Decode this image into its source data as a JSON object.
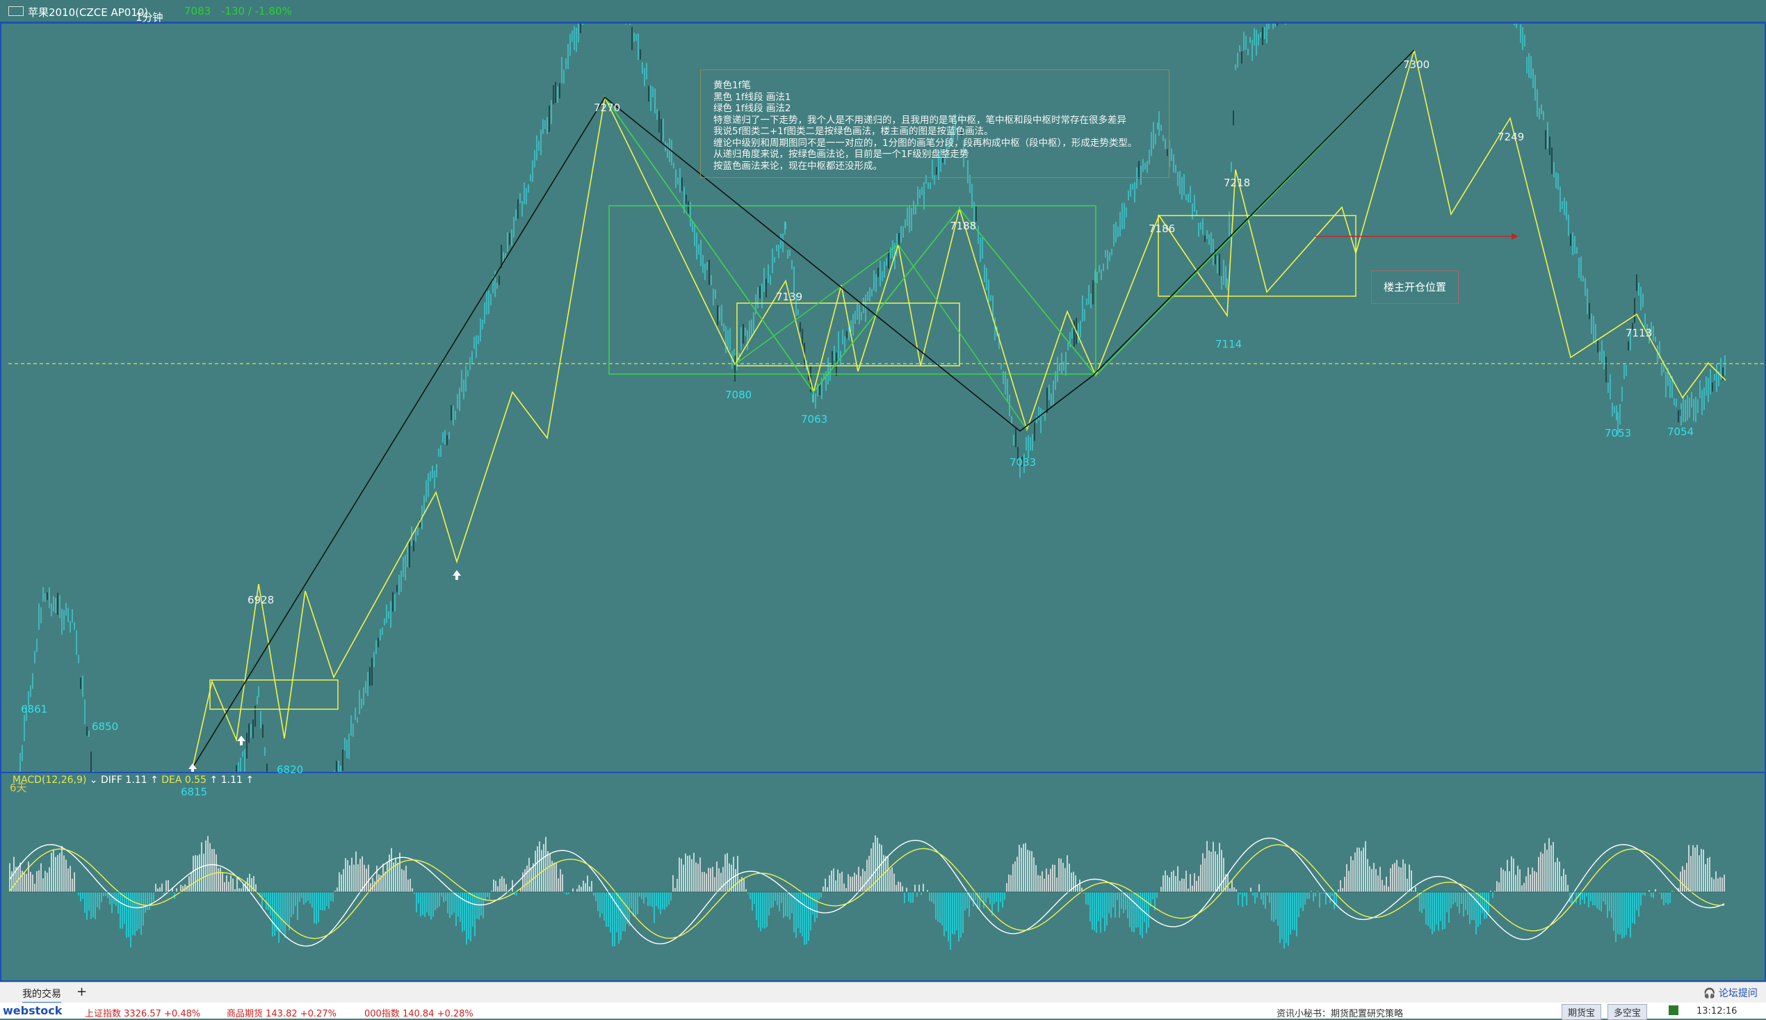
{
  "title_bar": {
    "symbol": "苹果2010(CZCE AP010)",
    "period": "1分钟",
    "price": "7083",
    "change": "-130 / -1.80%"
  },
  "chart_data": {
    "type": "line",
    "title": "",
    "price_axis_ref": 7080,
    "annotations": {
      "peaks": [
        "7270",
        "7300",
        "7249",
        "7218",
        "7188",
        "7186",
        "7139",
        "7113",
        "6928"
      ],
      "troughs": [
        "6861",
        "6850",
        "6820",
        "6815",
        "7080",
        "7063",
        "7033",
        "7114",
        "7053",
        "7054"
      ]
    },
    "pivots": [
      {
        "label": "6861",
        "value": 6861
      },
      {
        "label": "6850",
        "value": 6850
      },
      {
        "label": "6815",
        "value": 6815
      },
      {
        "label": "6928",
        "value": 6928
      },
      {
        "label": "6820",
        "value": 6820
      },
      {
        "label": "7270",
        "value": 7270
      },
      {
        "label": "7080",
        "value": 7080
      },
      {
        "label": "7139",
        "value": 7139
      },
      {
        "label": "7063",
        "value": 7063
      },
      {
        "label": "7188",
        "value": 7188
      },
      {
        "label": "7033",
        "value": 7033
      },
      {
        "label": "7186",
        "value": 7186
      },
      {
        "label": "7218",
        "value": 7218
      },
      {
        "label": "7114",
        "value": 7114
      },
      {
        "label": "7300",
        "value": 7300
      },
      {
        "label": "7249",
        "value": 7249
      },
      {
        "label": "7113",
        "value": 7113
      },
      {
        "label": "7053",
        "value": 7053
      },
      {
        "label": "7054",
        "value": 7054
      }
    ],
    "colors": {
      "background": "#437f80",
      "price": "#3ed4dc",
      "yellow_pen": "#f4f24a",
      "green_segment": "#3fd44a",
      "black_segment": "#111111",
      "ref_line": "#d6c84a",
      "red_arrow": "#c02828"
    }
  },
  "day_marker": "6天",
  "note": {
    "lines": [
      "黄色1f笔",
      "黑色      1f线段    画法1",
      "绿色      1f线段    画法2",
      "特意递归了一下走势，我个人是不用递归的，且我用的是笔中枢，笔中枢和段中枢时常存在很多差异",
      "我说5f图类二+1f图类二是按绿色画法，楼主画的图是按蓝色画法。",
      "缠论中级别和周期图同不是一一对应的，1分图的画笔分段，段再构成中枢（段中枢），形成走势类型。",
      "从递归角度来说，按绿色画法论，目前是一个1F级别盘整走势",
      "按蓝色画法来论，现在中枢都还没形成。"
    ]
  },
  "position_label": "楼主开仓位置",
  "macd": {
    "label": "MACD(12,26,9)",
    "diff": "DIFF 1.11",
    "dea": "DEA 0.55",
    "macd_value": "1.11"
  },
  "tabs": {
    "active": "我的交易",
    "add": "+",
    "forum": "论坛提问"
  },
  "status": {
    "brand": "webstock",
    "i1": "上证指数  3326.57  +0.48%",
    "i2": "商品期货  143.82  +0.27%",
    "i3": "000指数  140.84  +0.28%",
    "news": "资讯小秘书：期货配置研究策略",
    "b1": "期货宝",
    "b2": "多空宝",
    "time": "13:12:16"
  }
}
